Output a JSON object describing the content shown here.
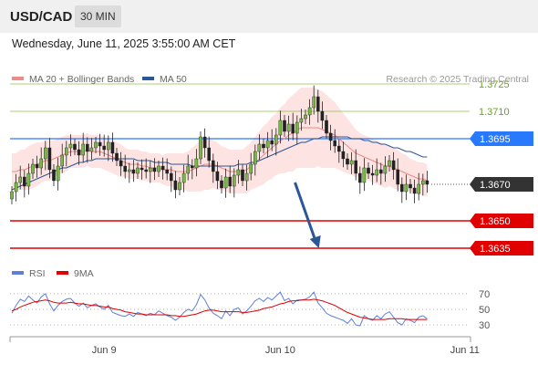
{
  "header": {
    "pair": "USD/CAD",
    "interval": "30 MIN",
    "datetime": "Wednesday, June 11, 2025 3:55:00 AM CET"
  },
  "chart_data": {
    "type": "candlestick",
    "legend": [
      {
        "label": "MA 20 + Bollinger Bands",
        "color": "#f08a86"
      },
      {
        "label": "MA 50",
        "color": "#2b5797"
      }
    ],
    "watermark": "Research © 2025 Trading Central",
    "y_range": [
      1.3626,
      1.3741
    ],
    "levels": [
      {
        "value": 1.3725,
        "label": "1.3725",
        "kind": "target",
        "color": "#8bc34a"
      },
      {
        "value": 1.371,
        "label": "1.3710",
        "kind": "target",
        "color": "#8bc34a"
      },
      {
        "value": 1.3695,
        "label": "1.3695",
        "kind": "pivot",
        "color": "#2979ff"
      },
      {
        "value": 1.367,
        "label": "1.3670",
        "kind": "current",
        "color": "#333333"
      },
      {
        "value": 1.365,
        "label": "1.3650",
        "kind": "support",
        "color": "#e00000"
      },
      {
        "value": 1.3635,
        "label": "1.3635",
        "kind": "support",
        "color": "#e00000"
      }
    ],
    "arrow": {
      "from": [
        1.3671,
        67.5
      ],
      "to": [
        1.3635,
        73.2
      ]
    },
    "closes": [
      1.3666,
      1.3671,
      1.3674,
      1.3669,
      1.3676,
      1.3681,
      1.3679,
      1.3684,
      1.369,
      1.3678,
      1.3672,
      1.368,
      1.3686,
      1.369,
      1.3692,
      1.3689,
      1.3686,
      1.3692,
      1.3688,
      1.369,
      1.3693,
      1.3691,
      1.3689,
      1.3693,
      1.3687,
      1.3683,
      1.368,
      1.3677,
      1.3678,
      1.3676,
      1.3679,
      1.3678,
      1.3677,
      1.3679,
      1.3677,
      1.368,
      1.3678,
      1.3676,
      1.3672,
      1.3667,
      1.3671,
      1.3676,
      1.368,
      1.3679,
      1.3684,
      1.3696,
      1.369,
      1.3683,
      1.3677,
      1.3672,
      1.3668,
      1.3674,
      1.3669,
      1.3675,
      1.3678,
      1.3672,
      1.3676,
      1.3681,
      1.3688,
      1.3692,
      1.369,
      1.3694,
      1.3692,
      1.3697,
      1.3705,
      1.3699,
      1.3703,
      1.3698,
      1.3704,
      1.3706,
      1.3708,
      1.3712,
      1.3718,
      1.371,
      1.3705,
      1.3698,
      1.3694,
      1.3691,
      1.3688,
      1.3684,
      1.3681,
      1.3683,
      1.3676,
      1.3671,
      1.3679,
      1.3676,
      1.3675,
      1.3678,
      1.3676,
      1.368,
      1.3683,
      1.3678,
      1.367,
      1.3666,
      1.367,
      1.3668,
      1.3665,
      1.367,
      1.3672,
      1.367
    ],
    "ma20": [
      1.3677,
      1.3677,
      1.3678,
      1.3678,
      1.3679,
      1.368,
      1.3681,
      1.3682,
      1.3683,
      1.3683,
      1.3684,
      1.3685,
      1.3686,
      1.3687,
      1.3688,
      1.3688,
      1.3688,
      1.3688,
      1.3689,
      1.3688,
      1.3688,
      1.3688,
      1.3687,
      1.3686,
      1.3685,
      1.3684,
      1.3683,
      1.3682,
      1.3681,
      1.3681,
      1.3681,
      1.368,
      1.368,
      1.3679,
      1.3679,
      1.3679,
      1.3678,
      1.3678,
      1.3678,
      1.3677,
      1.3677,
      1.3677,
      1.3677,
      1.3678,
      1.3679,
      1.368,
      1.3681,
      1.3681,
      1.3681,
      1.368,
      1.3679,
      1.3678,
      1.3677,
      1.3677,
      1.3677,
      1.3677,
      1.3678,
      1.368,
      1.3682,
      1.3684,
      1.3686,
      1.3688,
      1.369,
      1.3692,
      1.3694,
      1.3695,
      1.3697,
      1.3698,
      1.37,
      1.3701,
      1.3701,
      1.3701,
      1.3701,
      1.3701,
      1.37,
      1.3699,
      1.3698,
      1.3697,
      1.3695,
      1.3693,
      1.3691,
      1.3689,
      1.3687,
      1.3686,
      1.3685,
      1.3684,
      1.3683,
      1.3682,
      1.3681,
      1.368,
      1.368,
      1.3679,
      1.3678,
      1.3677,
      1.3676,
      1.3675,
      1.3674,
      1.3673,
      1.3673,
      1.3672
    ],
    "ma50": [
      1.3667,
      1.3668,
      1.3669,
      1.367,
      1.3671,
      1.3672,
      1.3673,
      1.3674,
      1.3675,
      1.3676,
      1.3677,
      1.3678,
      1.3679,
      1.3679,
      1.368,
      1.3681,
      1.3682,
      1.3682,
      1.3683,
      1.3683,
      1.3684,
      1.3684,
      1.3684,
      1.3684,
      1.3684,
      1.3684,
      1.3684,
      1.3684,
      1.3684,
      1.3684,
      1.3683,
      1.3683,
      1.3683,
      1.3683,
      1.3682,
      1.3682,
      1.3682,
      1.3682,
      1.3681,
      1.3681,
      1.3681,
      1.3681,
      1.3681,
      1.368,
      1.368,
      1.368,
      1.368,
      1.368,
      1.368,
      1.368,
      1.368,
      1.368,
      1.368,
      1.368,
      1.3681,
      1.3681,
      1.3681,
      1.3682,
      1.3682,
      1.3683,
      1.3684,
      1.3685,
      1.3686,
      1.3687,
      1.3688,
      1.3689,
      1.369,
      1.3691,
      1.3692,
      1.3693,
      1.3693,
      1.3694,
      1.3695,
      1.3695,
      1.3696,
      1.3696,
      1.3696,
      1.3696,
      1.3696,
      1.3696,
      1.3696,
      1.3695,
      1.3695,
      1.3695,
      1.3694,
      1.3694,
      1.3693,
      1.3693,
      1.3692,
      1.3692,
      1.3691,
      1.369,
      1.369,
      1.3689,
      1.3688,
      1.3688,
      1.3687,
      1.3686,
      1.3685,
      1.3685
    ],
    "band_width": [
      0.001,
      0.001,
      0.0011,
      0.0011,
      0.0012,
      0.0012,
      0.0012,
      0.0011,
      0.0011,
      0.0011,
      0.001,
      0.001,
      0.001,
      0.001,
      0.0009,
      0.0009,
      0.0009,
      0.0009,
      0.0009,
      0.0009,
      0.0009,
      0.0009,
      0.0009,
      0.0009,
      0.0009,
      0.0009,
      0.0009,
      0.0008,
      0.0008,
      0.0008,
      0.0008,
      0.0008,
      0.0008,
      0.0008,
      0.0008,
      0.0008,
      0.0008,
      0.0009,
      0.0009,
      0.001,
      0.001,
      0.001,
      0.0011,
      0.0012,
      0.0013,
      0.0014,
      0.0014,
      0.0014,
      0.0013,
      0.0013,
      0.0012,
      0.0012,
      0.0012,
      0.0012,
      0.0012,
      0.0012,
      0.0013,
      0.0013,
      0.0014,
      0.0015,
      0.0016,
      0.0016,
      0.0017,
      0.0017,
      0.0018,
      0.0019,
      0.002,
      0.0021,
      0.0021,
      0.0022,
      0.0022,
      0.0022,
      0.0022,
      0.0021,
      0.0021,
      0.002,
      0.0019,
      0.0018,
      0.0017,
      0.0016,
      0.0015,
      0.0014,
      0.0013,
      0.0012,
      0.0012,
      0.0012,
      0.0012,
      0.0012,
      0.0012,
      0.0012,
      0.0011,
      0.0011,
      0.0011,
      0.001,
      0.001,
      0.0009,
      0.0009,
      0.0009,
      0.0009,
      0.0009
    ],
    "x_labels": [
      {
        "label": "Jun 9",
        "index": 22
      },
      {
        "label": "Jun 10",
        "index": 64
      },
      {
        "label": "Jun 11",
        "index": 108
      }
    ],
    "rsi": {
      "legend": [
        {
          "label": "RSI",
          "color": "#5b7fdb"
        },
        {
          "label": "9MA",
          "color": "#e00000"
        }
      ],
      "ticks": [
        70,
        50,
        30
      ],
      "y_range": [
        22,
        78
      ],
      "values": [
        45,
        55,
        63,
        60,
        67,
        62,
        58,
        66,
        70,
        57,
        48,
        55,
        60,
        63,
        64,
        58,
        54,
        58,
        52,
        55,
        57,
        53,
        50,
        55,
        46,
        44,
        42,
        41,
        44,
        41,
        46,
        44,
        42,
        45,
        43,
        48,
        45,
        42,
        40,
        36,
        40,
        46,
        50,
        48,
        56,
        69,
        62,
        52,
        45,
        42,
        38,
        48,
        42,
        50,
        52,
        44,
        48,
        54,
        61,
        64,
        60,
        65,
        62,
        67,
        72,
        61,
        64,
        57,
        62,
        62,
        63,
        66,
        72,
        58,
        52,
        45,
        42,
        40,
        38,
        36,
        32,
        38,
        30,
        29,
        42,
        38,
        36,
        42,
        38,
        44,
        47,
        40,
        33,
        30,
        38,
        36,
        33,
        40,
        42,
        38
      ],
      "ma": [
        48,
        50,
        53,
        55,
        57,
        59,
        60,
        61,
        62,
        61,
        59,
        58,
        58,
        58,
        59,
        58,
        57,
        57,
        56,
        55,
        55,
        54,
        53,
        53,
        51,
        50,
        49,
        47,
        46,
        45,
        44,
        44,
        43,
        43,
        43,
        43,
        43,
        43,
        42,
        42,
        41,
        41,
        42,
        43,
        44,
        46,
        48,
        49,
        49,
        48,
        47,
        47,
        47,
        47,
        47,
        46,
        46,
        47,
        48,
        49,
        51,
        52,
        53,
        55,
        57,
        58,
        60,
        61,
        61,
        62,
        62,
        62,
        63,
        62,
        61,
        59,
        57,
        55,
        52,
        49,
        46,
        44,
        42,
        40,
        39,
        38,
        37,
        37,
        37,
        37,
        38,
        38,
        38,
        38,
        37,
        37,
        37,
        37,
        37,
        37
      ]
    }
  }
}
